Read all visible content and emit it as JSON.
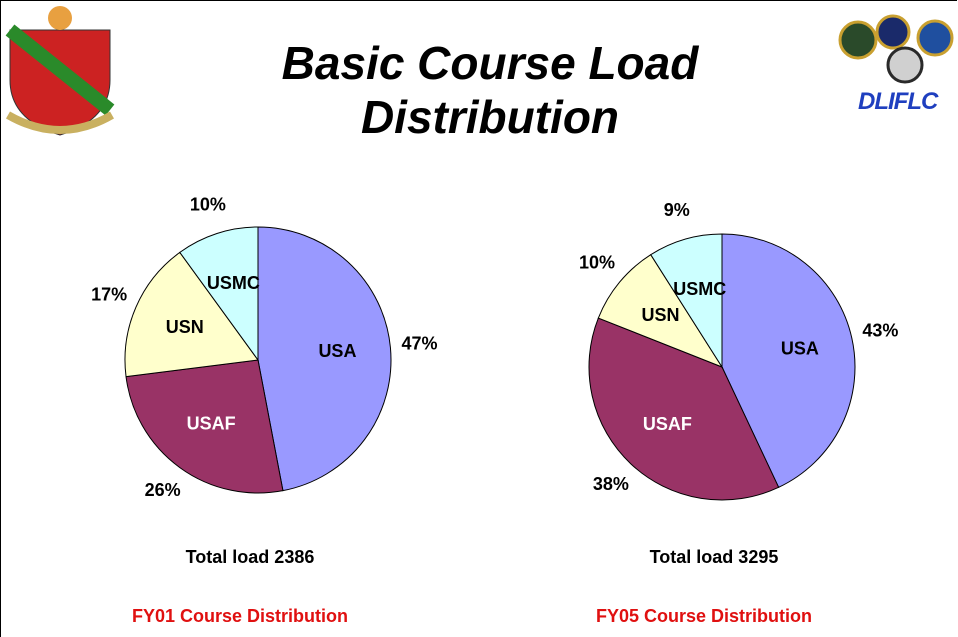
{
  "title": "Basic Course Load Distribution",
  "logo_text": "DLIFLC",
  "chart_data": [
    {
      "type": "pie",
      "categories": [
        "USA",
        "USAF",
        "USN",
        "USMC"
      ],
      "values": [
        47,
        26,
        17,
        10
      ],
      "value_labels": [
        "47%",
        "26%",
        "17%",
        "10%"
      ],
      "colors": [
        "#9999ff",
        "#993366",
        "#ffffcc",
        "#ccffff"
      ],
      "subtitle": "Total load 2386",
      "caption": "FY01 Course Distribution"
    },
    {
      "type": "pie",
      "categories": [
        "USA",
        "USAF",
        "USN",
        "USMC"
      ],
      "values": [
        43,
        38,
        10,
        9
      ],
      "value_labels": [
        "43%",
        "38%",
        "10%",
        "9%"
      ],
      "colors": [
        "#9999ff",
        "#993366",
        "#ffffcc",
        "#ccffff"
      ],
      "subtitle": "Total load 3295",
      "caption": "FY05 Course Distribution"
    }
  ]
}
